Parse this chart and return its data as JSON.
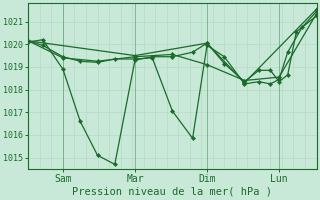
{
  "title": "",
  "xlabel": "Pression niveau de la mer( hPa )",
  "bg_color": "#c8e8d8",
  "grid_color": "#b8d8c8",
  "line_color": "#1a6b2a",
  "ylim": [
    1014.5,
    1021.8
  ],
  "yticks": [
    1015,
    1016,
    1017,
    1018,
    1019,
    1020,
    1021
  ],
  "day_positions": [
    12,
    37,
    62,
    87
  ],
  "day_labels": [
    "Sam",
    "Mar",
    "Dim",
    "Lun"
  ],
  "n_points": 100,
  "lines": [
    [
      [
        0,
        1020.1
      ],
      [
        5,
        1020.2
      ],
      [
        12,
        1018.9
      ],
      [
        18,
        1016.6
      ],
      [
        24,
        1015.1
      ],
      [
        30,
        1014.7
      ],
      [
        37,
        1019.3
      ],
      [
        43,
        1019.45
      ],
      [
        50,
        1019.45
      ],
      [
        57,
        1019.65
      ],
      [
        62,
        1020.05
      ],
      [
        68,
        1019.15
      ],
      [
        75,
        1018.35
      ],
      [
        80,
        1018.85
      ],
      [
        84,
        1018.85
      ],
      [
        87,
        1018.35
      ],
      [
        90,
        1018.65
      ],
      [
        93,
        1020.55
      ],
      [
        100,
        1021.25
      ]
    ],
    [
      [
        0,
        1020.15
      ],
      [
        5,
        1019.95
      ],
      [
        12,
        1019.45
      ],
      [
        18,
        1019.25
      ],
      [
        24,
        1019.2
      ],
      [
        30,
        1019.35
      ],
      [
        37,
        1019.35
      ],
      [
        43,
        1019.4
      ],
      [
        50,
        1017.05
      ],
      [
        57,
        1015.85
      ],
      [
        62,
        1019.95
      ],
      [
        68,
        1019.45
      ],
      [
        75,
        1018.25
      ],
      [
        80,
        1018.35
      ],
      [
        84,
        1018.25
      ],
      [
        87,
        1018.45
      ],
      [
        90,
        1019.65
      ],
      [
        95,
        1020.75
      ],
      [
        100,
        1021.45
      ]
    ],
    [
      [
        0,
        1020.15
      ],
      [
        12,
        1019.4
      ],
      [
        24,
        1019.25
      ],
      [
        37,
        1019.45
      ],
      [
        50,
        1019.55
      ],
      [
        62,
        1019.1
      ],
      [
        75,
        1018.4
      ],
      [
        87,
        1018.55
      ],
      [
        100,
        1021.35
      ]
    ],
    [
      [
        0,
        1020.15
      ],
      [
        37,
        1019.5
      ],
      [
        62,
        1020.05
      ],
      [
        75,
        1018.3
      ],
      [
        100,
        1021.55
      ]
    ]
  ]
}
